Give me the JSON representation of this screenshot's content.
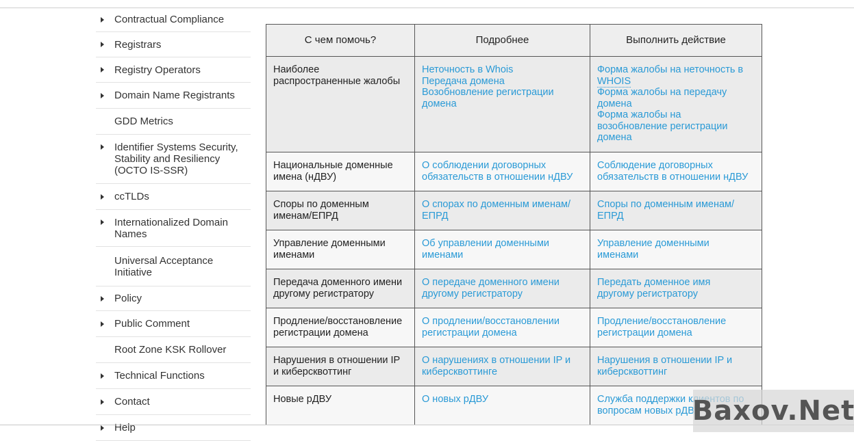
{
  "sidebar": {
    "items": [
      {
        "label": "Contractual Compliance",
        "caret": true
      },
      {
        "label": "Registrars",
        "caret": true
      },
      {
        "label": "Registry Operators",
        "caret": true
      },
      {
        "label": "Domain Name Registrants",
        "caret": true
      },
      {
        "label": "GDD Metrics",
        "caret": false
      },
      {
        "label": "Identifier Systems Security, Stability and Resiliency (OCTO IS-SSR)",
        "caret": true
      },
      {
        "label": "ccTLDs",
        "caret": true
      },
      {
        "label": "Internationalized Domain Names",
        "caret": true
      },
      {
        "label": "Universal Acceptance Initiative",
        "caret": false
      },
      {
        "label": "Policy",
        "caret": true
      },
      {
        "label": "Public Comment",
        "caret": true
      },
      {
        "label": "Root Zone KSK Rollover",
        "caret": false
      },
      {
        "label": "Technical Functions",
        "caret": true
      },
      {
        "label": "Contact",
        "caret": true
      },
      {
        "label": "Help",
        "caret": true
      }
    ]
  },
  "table": {
    "headers": [
      "С чем помочь?",
      "Подробнее",
      "Выполнить действие"
    ],
    "rows": [
      {
        "topic": [
          "Наиболее",
          "распространенные жалобы"
        ],
        "details": [
          "Неточность в Whois",
          "Передача домена",
          "Возобновление регистрации",
          "домена"
        ],
        "actions": [
          "Форма жалобы на неточность в",
          "WHOIS",
          "Форма жалобы на передачу",
          "домена",
          "Форма жалобы на",
          "возобновление регистрации",
          "домена"
        ]
      },
      {
        "topic": [
          "Национальные доменные",
          "имена (нДВУ)"
        ],
        "details": [
          "О соблюдении договорных",
          "обязательств в отношении нДВУ"
        ],
        "actions": [
          "Соблюдение договорных",
          "обязательств в отношении нДВУ"
        ]
      },
      {
        "topic": [
          "Споры по доменным",
          "именам/ЕПРД"
        ],
        "details": [
          "О спорах по доменным именам/",
          "ЕПРД"
        ],
        "actions": [
          "Споры по доменным именам/",
          "ЕПРД"
        ]
      },
      {
        "topic": [
          "Управление доменными",
          "именами"
        ],
        "details": [
          "Об управлении доменными",
          "именами"
        ],
        "actions": [
          "Управление доменными",
          "именами"
        ]
      },
      {
        "topic": [
          "Передача доменного имени",
          "другому регистратору"
        ],
        "details": [
          "О передаче доменного имени",
          "другому регистратору"
        ],
        "actions": [
          "Передать доменное имя",
          "другому регистратору"
        ]
      },
      {
        "topic": [
          "Продление/восстановление",
          "регистрации домена"
        ],
        "details": [
          "О продлении/восстановлении",
          "регистрации домена"
        ],
        "actions": [
          "Продление/восстановление",
          "регистрации домена"
        ]
      },
      {
        "topic": [
          "Нарушения в отношении IP",
          "и киберсквоттинг"
        ],
        "details": [
          "О нарушениях в отношении IP и",
          "киберсквоттинге"
        ],
        "actions": [
          "Нарушения в отношении IP и",
          "киберсквоттинг"
        ]
      },
      {
        "topic": [
          "Новые рДВУ"
        ],
        "details": [
          "О новых рДВУ"
        ],
        "actions": [
          "Служба поддержки клиентов по",
          "вопросам новых рДВУ"
        ]
      }
    ]
  },
  "watermark": {
    "text": "Baxov.Net"
  },
  "colors": {
    "link": "#2a9ad6",
    "header_bg": "#eeeeee",
    "border": "#555555"
  }
}
